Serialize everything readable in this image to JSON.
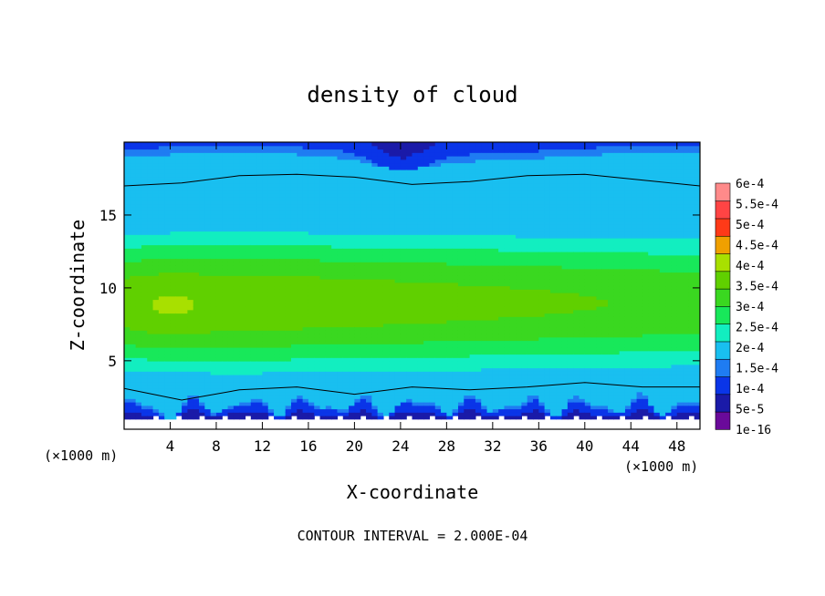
{
  "chart_data": {
    "type": "heatmap",
    "title": "density of cloud",
    "xlabel": "X-coordinate",
    "ylabel": "Z-coordinate",
    "x_unit": "(×1000 m)",
    "footer": "CONTOUR INTERVAL = 2.000E-04",
    "xlim": [
      0,
      50
    ],
    "ylim": [
      0.3,
      20
    ],
    "x_ticks": [
      4,
      8,
      12,
      16,
      20,
      24,
      28,
      32,
      36,
      40,
      44,
      48
    ],
    "y_ticks": [
      5,
      10,
      15
    ],
    "colorbar": {
      "labels": [
        "1e-16",
        "5e-5",
        "1e-4",
        "1.5e-4",
        "2e-4",
        "2.5e-4",
        "3e-4",
        "3.5e-4",
        "4e-4",
        "4.5e-4",
        "5e-4",
        "5.5e-4",
        "6e-4"
      ],
      "colors": [
        "#6a0a9a",
        "#1a1aa8",
        "#0a35e8",
        "#1f7cf2",
        "#19bff0",
        "#12eec0",
        "#18e85a",
        "#3ad820",
        "#60d000",
        "#a8e000",
        "#f0a000",
        "#ff3a18",
        "#ff4444",
        "#ff8a8a"
      ]
    },
    "field_summary": {
      "contour_line_top_z": [
        17.0,
        17.2,
        17.7,
        17.8,
        17.6,
        17.1,
        17.3,
        17.7,
        17.8,
        17.4,
        17.0
      ],
      "contour_line_bottom_z": [
        3.1,
        2.3,
        3.0,
        3.2,
        2.7,
        3.2,
        3.0,
        3.2,
        3.5,
        3.2,
        3.2
      ],
      "max_region": {
        "x": 4,
        "z": 8.5,
        "value": "4e-4"
      }
    }
  }
}
